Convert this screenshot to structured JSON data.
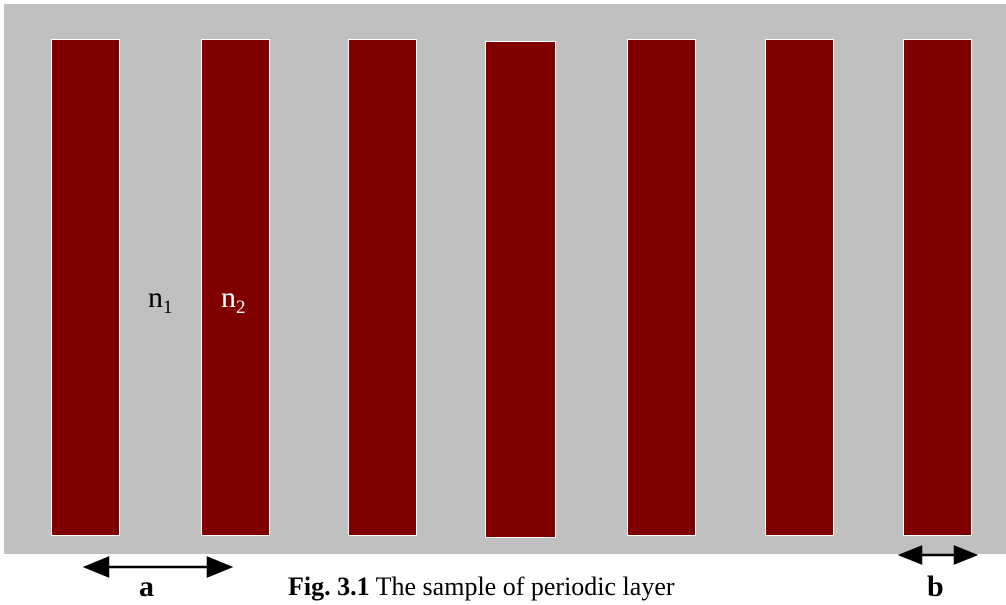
{
  "colors": {
    "medium_1": "#c0c0c0",
    "medium_2": "#800000",
    "bar_outline": "#ffffff",
    "text": "#000000",
    "text_on_dark": "#ffffff"
  },
  "structure": {
    "type": "periodic-layer",
    "stripe_count": 7
  },
  "media_labels": {
    "n1": {
      "base": "n",
      "sub": "1"
    },
    "n2": {
      "base": "n",
      "sub": "2"
    }
  },
  "dimensions": {
    "period_label": "a",
    "width_label": "b"
  },
  "caption": {
    "number": "Fig. 3.1",
    "text": " The sample of periodic layer"
  }
}
